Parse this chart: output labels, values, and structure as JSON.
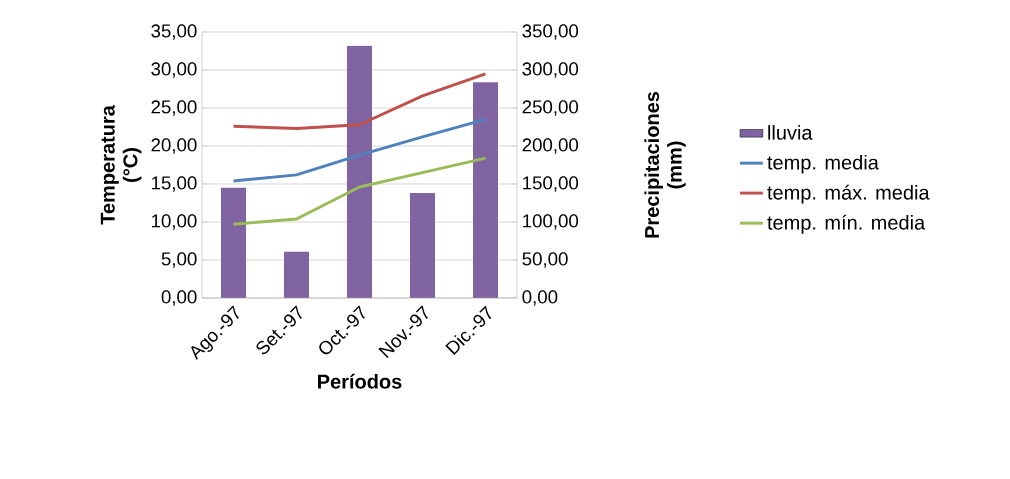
{
  "chart_data": {
    "type": "line",
    "xlabel": "Períodos",
    "ylabel": "Temperatura (°C)",
    "y2label": "Precipitaciones (mm)",
    "categories": [
      "Ago.-97",
      "Set.-97",
      "Oct.-97",
      "Nov.-97",
      "Dic.-97"
    ],
    "series": [
      {
        "name": "lluvia",
        "type": "bar",
        "axis": "y2",
        "color": "#8064a2",
        "values": [
          145,
          61,
          332,
          138,
          284
        ]
      },
      {
        "name": "temp. media",
        "color": "#4f81bd",
        "values": [
          15.4,
          16.2,
          18.8,
          21.2,
          23.5
        ]
      },
      {
        "name": "temp. máx. media",
        "color": "#c0504d",
        "values": [
          22.6,
          22.3,
          22.8,
          26.6,
          29.5
        ]
      },
      {
        "name": "temp. mín. media",
        "color": "#9bbb59",
        "values": [
          9.7,
          10.4,
          14.6,
          16.5,
          18.4
        ]
      }
    ],
    "ylim": [
      0,
      35
    ],
    "yticks": [
      {
        "value": 0,
        "label": "0,00"
      },
      {
        "value": 5,
        "label": "5,00"
      },
      {
        "value": 10,
        "label": "10,00"
      },
      {
        "value": 15,
        "label": "15,00"
      },
      {
        "value": 20,
        "label": "20,00"
      },
      {
        "value": 25,
        "label": "25,00"
      },
      {
        "value": 30,
        "label": "30,00"
      },
      {
        "value": 35,
        "label": "35,00"
      }
    ],
    "y2lim": [
      0,
      350
    ],
    "y2ticks": [
      {
        "value": 0,
        "label": "0,00"
      },
      {
        "value": 50,
        "label": "50,00"
      },
      {
        "value": 100,
        "label": "100,00"
      },
      {
        "value": 150,
        "label": "150,00"
      },
      {
        "value": 200,
        "label": "200,00"
      },
      {
        "value": 250,
        "label": "250,00"
      },
      {
        "value": 300,
        "label": "300,00"
      },
      {
        "value": 350,
        "label": "350,00"
      }
    ],
    "grid": "y",
    "legend": "right"
  }
}
